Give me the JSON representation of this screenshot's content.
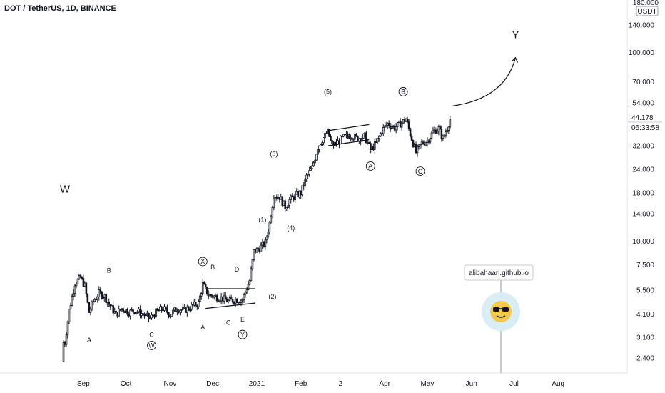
{
  "header": {
    "title": "DOT / TetherUS, 1D, BINANCE"
  },
  "price_axis": {
    "unit": "USDT",
    "top_label": "180.000",
    "current_price": "44.178",
    "countdown": "06:33:58"
  },
  "watermark": {
    "text": "alibahaari.github.io",
    "icon": "sunglasses-smiley-icon"
  },
  "colors": {
    "candle": "#131722",
    "background": "#ffffff",
    "price_tag": "#131722",
    "badge_circle": "#d8eef4",
    "badge_face": "#f2c94c"
  },
  "chart_data": {
    "type": "candlestick",
    "y_scale": "log",
    "ylim": [
      2.0,
      190.0
    ],
    "y_ticks": [
      "2.400",
      "3.100",
      "4.100",
      "5.500",
      "7.500",
      "10.000",
      "14.000",
      "18.000",
      "24.000",
      "32.000",
      "54.000",
      "70.000",
      "100.000",
      "140.000"
    ],
    "y_tick_values": [
      2.4,
      3.1,
      4.1,
      5.5,
      7.5,
      10,
      14,
      18,
      24,
      32,
      54,
      70,
      100,
      140
    ],
    "x_ticks": [
      "Sep",
      "Oct",
      "Nov",
      "Dec",
      "2021",
      "Feb",
      "2",
      "Apr",
      "May",
      "Jun",
      "Jul",
      "Aug"
    ],
    "x_tick_dates": [
      "2020-09-01",
      "2020-10-01",
      "2020-11-01",
      "2020-12-01",
      "2021-01-01",
      "2021-02-01",
      "2021-03-01",
      "2021-04-01",
      "2021-05-01",
      "2021-06-01",
      "2021-07-01",
      "2021-08-01"
    ],
    "close_points": [
      [
        "2020-08-19",
        2.9
      ],
      [
        "2020-08-22",
        4.3
      ],
      [
        "2020-08-26",
        6.0
      ],
      [
        "2020-08-30",
        6.4
      ],
      [
        "2020-09-02",
        5.8
      ],
      [
        "2020-09-05",
        4.2
      ],
      [
        "2020-09-08",
        4.8
      ],
      [
        "2020-09-12",
        5.3
      ],
      [
        "2020-09-16",
        5.1
      ],
      [
        "2020-09-20",
        4.5
      ],
      [
        "2020-09-24",
        4.1
      ],
      [
        "2020-09-28",
        4.4
      ],
      [
        "2020-10-03",
        4.2
      ],
      [
        "2020-10-08",
        4.3
      ],
      [
        "2020-10-13",
        4.1
      ],
      [
        "2020-10-18",
        3.9
      ],
      [
        "2020-10-22",
        4.2
      ],
      [
        "2020-10-27",
        4.4
      ],
      [
        "2020-11-01",
        4.1
      ],
      [
        "2020-11-06",
        4.4
      ],
      [
        "2020-11-11",
        4.3
      ],
      [
        "2020-11-16",
        4.5
      ],
      [
        "2020-11-21",
        4.7
      ],
      [
        "2020-11-24",
        5.9
      ],
      [
        "2020-11-28",
        5.2
      ],
      [
        "2020-12-02",
        5.1
      ],
      [
        "2020-12-07",
        5.0
      ],
      [
        "2020-12-12",
        4.8
      ],
      [
        "2020-12-17",
        4.9
      ],
      [
        "2020-12-22",
        4.9
      ],
      [
        "2020-12-27",
        6.2
      ],
      [
        "2020-12-30",
        8.8
      ],
      [
        "2021-01-03",
        9.2
      ],
      [
        "2021-01-07",
        9.8
      ],
      [
        "2021-01-10",
        12.5
      ],
      [
        "2021-01-13",
        17.5
      ],
      [
        "2021-01-17",
        17.2
      ],
      [
        "2021-01-21",
        15.2
      ],
      [
        "2021-01-24",
        16.5
      ],
      [
        "2021-01-28",
        17.4
      ],
      [
        "2021-02-01",
        18.0
      ],
      [
        "2021-02-05",
        22.0
      ],
      [
        "2021-02-09",
        24.5
      ],
      [
        "2021-02-13",
        31.5
      ],
      [
        "2021-02-16",
        34.5
      ],
      [
        "2021-02-20",
        38.0
      ],
      [
        "2021-02-23",
        32.0
      ],
      [
        "2021-02-27",
        33.5
      ],
      [
        "2021-03-03",
        35.5
      ],
      [
        "2021-03-08",
        36.5
      ],
      [
        "2021-03-13",
        35.0
      ],
      [
        "2021-03-18",
        36.0
      ],
      [
        "2021-03-22",
        30.5
      ],
      [
        "2021-03-26",
        33.0
      ],
      [
        "2021-03-30",
        38.5
      ],
      [
        "2021-04-03",
        42.0
      ],
      [
        "2021-04-08",
        40.0
      ],
      [
        "2021-04-13",
        42.5
      ],
      [
        "2021-04-16",
        44.5
      ],
      [
        "2021-04-19",
        37.0
      ],
      [
        "2021-04-23",
        29.5
      ],
      [
        "2021-04-27",
        33.0
      ],
      [
        "2021-05-01",
        34.0
      ],
      [
        "2021-05-05",
        38.0
      ],
      [
        "2021-05-09",
        39.5
      ],
      [
        "2021-05-12",
        35.0
      ],
      [
        "2021-05-15",
        40.0
      ],
      [
        "2021-05-17",
        44.2
      ]
    ],
    "wave_labels": [
      {
        "text": "W",
        "date": "2020-08-19",
        "price": 19.0,
        "style": "plain",
        "size": "large"
      },
      {
        "text": "A",
        "date": "2020-09-05",
        "price": 3.0,
        "style": "plain",
        "size": "small"
      },
      {
        "text": "B",
        "date": "2020-09-19",
        "price": 7.0,
        "style": "plain",
        "size": "small"
      },
      {
        "text": "C",
        "date": "2020-10-19",
        "price": 3.2,
        "style": "plain",
        "size": "small"
      },
      {
        "text": "W",
        "date": "2020-10-19",
        "price": 2.8,
        "style": "circled",
        "size": "small"
      },
      {
        "text": "A",
        "date": "2020-11-24",
        "price": 3.5,
        "style": "plain",
        "size": "small"
      },
      {
        "text": "X",
        "date": "2020-11-24",
        "price": 7.8,
        "style": "circled",
        "size": "small"
      },
      {
        "text": "B",
        "date": "2020-12-01",
        "price": 7.3,
        "style": "plain",
        "size": "small"
      },
      {
        "text": "C",
        "date": "2020-12-12",
        "price": 3.7,
        "style": "plain",
        "size": "small"
      },
      {
        "text": "D",
        "date": "2020-12-18",
        "price": 7.1,
        "style": "plain",
        "size": "small"
      },
      {
        "text": "E",
        "date": "2020-12-22",
        "price": 3.85,
        "style": "plain",
        "size": "small"
      },
      {
        "text": "Y",
        "date": "2020-12-22",
        "price": 3.2,
        "style": "circled",
        "size": "small"
      },
      {
        "text": "(1)",
        "date": "2021-01-05",
        "price": 13.0,
        "style": "plain",
        "size": "small"
      },
      {
        "text": "(2)",
        "date": "2021-01-12",
        "price": 5.1,
        "style": "plain",
        "size": "small"
      },
      {
        "text": "(3)",
        "date": "2021-01-13",
        "price": 29.0,
        "style": "plain",
        "size": "small"
      },
      {
        "text": "(4)",
        "date": "2021-01-25",
        "price": 11.8,
        "style": "plain",
        "size": "small"
      },
      {
        "text": "(5)",
        "date": "2021-02-20",
        "price": 62.0,
        "style": "plain",
        "size": "small"
      },
      {
        "text": "A",
        "date": "2021-03-22",
        "price": 25.0,
        "style": "circled",
        "size": "small"
      },
      {
        "text": "B",
        "date": "2021-04-14",
        "price": 62.0,
        "style": "circled",
        "size": "small"
      },
      {
        "text": "C",
        "date": "2021-04-26",
        "price": 23.5,
        "style": "circled",
        "size": "small"
      },
      {
        "text": "Y",
        "date": "2021-07-02",
        "price": 125.0,
        "style": "plain",
        "size": "large"
      }
    ],
    "drawings": [
      {
        "name": "triangle-upper-line",
        "from": [
          "2020-11-26",
          5.6
        ],
        "to": [
          "2020-12-31",
          5.6
        ]
      },
      {
        "name": "triangle-lower-line",
        "from": [
          "2020-11-26",
          4.4
        ],
        "to": [
          "2020-12-31",
          4.7
        ]
      },
      {
        "name": "flag-upper-line",
        "from": [
          "2021-02-20",
          38.5
        ],
        "to": [
          "2021-03-21",
          41.5
        ]
      },
      {
        "name": "flag-lower-line",
        "from": [
          "2021-02-20",
          32.0
        ],
        "to": [
          "2021-03-21",
          34.5
        ]
      }
    ],
    "forecast_arrow": {
      "from": [
        "2021-05-18",
        52.0
      ],
      "to": [
        "2021-07-02",
        94.0
      ]
    }
  }
}
